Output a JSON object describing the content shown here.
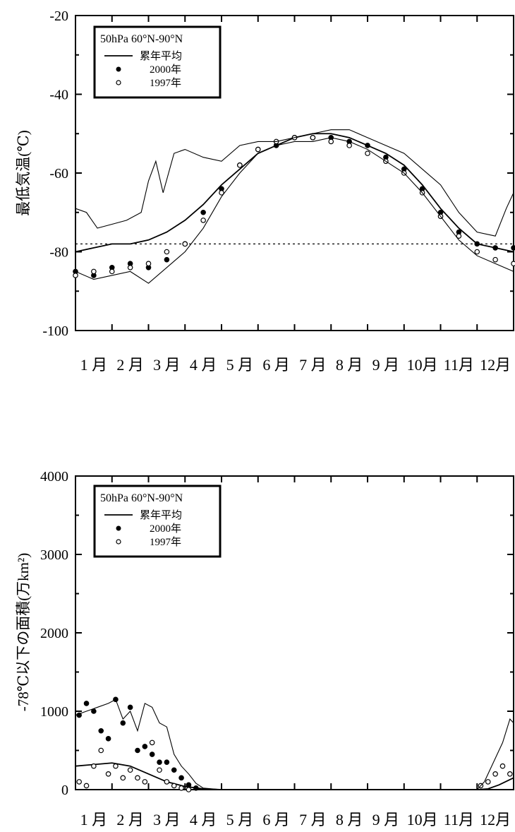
{
  "chart_data": [
    {
      "type": "line",
      "ylabel": "最低気温(℃)",
      "ylim": [
        -100,
        -20
      ],
      "yticks": [
        "-20",
        "-40",
        "-60",
        "-80",
        "-100"
      ],
      "xticks": [
        "1 月",
        "2 月",
        "3 月",
        "4 月",
        "5 月",
        "6 月",
        "7 月",
        "8 月",
        "9 月",
        "10月",
        "11月",
        "12月"
      ],
      "legend": {
        "title": "50hPa 60°N-90°N",
        "position": "top-left",
        "entries": [
          "累年平均",
          "2000年",
          "1997年"
        ]
      },
      "reference_line": {
        "y": -78,
        "style": "dashed"
      },
      "series": [
        {
          "name": "累年平均",
          "style": "line",
          "x": [
            0,
            0.5,
            1,
            1.5,
            2,
            2.5,
            3,
            3.5,
            4,
            4.5,
            5,
            5.5,
            6,
            6.5,
            7,
            7.5,
            8,
            8.5,
            9,
            9.5,
            10,
            10.5,
            11,
            11.5,
            12
          ],
          "y": [
            -80,
            -79,
            -78,
            -78,
            -77,
            -75,
            -72,
            -68,
            -63,
            -59,
            -55,
            -53,
            -51,
            -50,
            -50,
            -51,
            -53,
            -55,
            -58,
            -63,
            -69,
            -74,
            -78,
            -79,
            -80
          ]
        },
        {
          "name": "2000年",
          "style": "filled-dots",
          "x": [
            0,
            0.5,
            1,
            1.5,
            2,
            2.5,
            3,
            3.5,
            4,
            4.5,
            5,
            5.5,
            6,
            6.5,
            7,
            7.5,
            8,
            8.5,
            9,
            9.5,
            10,
            10.5,
            11,
            11.5,
            12
          ],
          "y": [
            -85,
            -86,
            -84,
            -83,
            -84,
            -82,
            -78,
            -70,
            -64,
            -58,
            -54,
            -53,
            -51,
            -51,
            -51,
            -52,
            -53,
            -56,
            -59,
            -64,
            -70,
            -75,
            -78,
            -79,
            -79
          ]
        },
        {
          "name": "1997年",
          "style": "open-dots",
          "x": [
            0,
            0.5,
            1,
            1.5,
            2,
            2.5,
            3,
            3.5,
            4,
            4.5,
            5,
            5.5,
            6,
            6.5,
            7,
            7.5,
            8,
            8.5,
            9,
            9.5,
            10,
            10.5,
            11,
            11.5,
            12
          ],
          "y": [
            -86,
            -85,
            -85,
            -84,
            -83,
            -80,
            -78,
            -72,
            -65,
            -58,
            -54,
            -52,
            -51,
            -51,
            -52,
            -53,
            -55,
            -57,
            -60,
            -65,
            -71,
            -76,
            -80,
            -82,
            -83
          ]
        },
        {
          "name": "",
          "style": "thin-line",
          "x": [
            0,
            0.3,
            0.6,
            1,
            1.4,
            1.8,
            2,
            2.2,
            2.4,
            2.7,
            3,
            3.5,
            4,
            4.5,
            5,
            5.5,
            6,
            6.5,
            7,
            7.5,
            8,
            8.5,
            9,
            9.5,
            10,
            10.5,
            11,
            11.5,
            11.8,
            12
          ],
          "y": [
            -69,
            -70,
            -74,
            -73,
            -72,
            -70,
            -62,
            -57,
            -65,
            -55,
            -54,
            -56,
            -57,
            -53,
            -52,
            -52,
            -51,
            -50,
            -49,
            -49,
            -51,
            -53,
            -55,
            -59,
            -63,
            -70,
            -75,
            -76,
            -69,
            -65
          ]
        },
        {
          "name": "",
          "style": "thin-line",
          "x": [
            0,
            0.5,
            1,
            1.5,
            2,
            2.5,
            3,
            3.5,
            4,
            4.5,
            5,
            5.5,
            6,
            6.5,
            7,
            7.5,
            8,
            8.5,
            9,
            9.5,
            10,
            10.5,
            11,
            11.5,
            12
          ],
          "y": [
            -85,
            -87,
            -86,
            -85,
            -88,
            -84,
            -80,
            -74,
            -66,
            -60,
            -55,
            -53,
            -52,
            -52,
            -51,
            -52,
            -54,
            -57,
            -60,
            -65,
            -71,
            -77,
            -81,
            -83,
            -85
          ]
        }
      ]
    },
    {
      "type": "line",
      "ylabel": "-78℃以下の面積(万km²)",
      "ylim": [
        0,
        4000
      ],
      "yticks": [
        "4000",
        "3000",
        "2000",
        "1000",
        "0"
      ],
      "xticks": [
        "1 月",
        "2 月",
        "3 月",
        "4 月",
        "5 月",
        "6 月",
        "7 月",
        "8 月",
        "9 月",
        "10月",
        "11月",
        "12月"
      ],
      "legend": {
        "title": "50hPa 60°N-90°N",
        "position": "top-left",
        "entries": [
          "累年平均",
          "2000年",
          "1997年"
        ]
      },
      "series": [
        {
          "name": "累年平均",
          "style": "line",
          "x": [
            0,
            0.5,
            1,
            1.5,
            2,
            2.5,
            3,
            3.5,
            4,
            5,
            6,
            7,
            8,
            9,
            10,
            10.5,
            11,
            11.3,
            11.6,
            12
          ],
          "y": [
            300,
            320,
            340,
            300,
            200,
            100,
            40,
            10,
            0,
            0,
            0,
            0,
            0,
            0,
            0,
            0,
            0,
            10,
            60,
            150
          ]
        },
        {
          "name": "2000年",
          "style": "filled-dots",
          "x": [
            0.1,
            0.3,
            0.5,
            0.7,
            0.9,
            1.1,
            1.3,
            1.5,
            1.7,
            1.9,
            2.1,
            2.3,
            2.5,
            2.7,
            2.9,
            3.1,
            3.3
          ],
          "y": [
            950,
            1100,
            1000,
            750,
            650,
            1150,
            850,
            1050,
            500,
            550,
            450,
            350,
            350,
            250,
            150,
            60,
            20
          ]
        },
        {
          "name": "1997年",
          "style": "open-dots",
          "x": [
            0.1,
            0.3,
            0.5,
            0.7,
            0.9,
            1.1,
            1.3,
            1.5,
            1.7,
            1.9,
            2.1,
            2.3,
            2.5,
            2.7,
            2.9,
            3.1,
            11.1,
            11.3,
            11.5,
            11.7,
            11.9
          ],
          "y": [
            100,
            50,
            300,
            500,
            200,
            300,
            150,
            250,
            150,
            100,
            600,
            250,
            100,
            50,
            20,
            0,
            50,
            100,
            200,
            300,
            200
          ]
        },
        {
          "name": "",
          "style": "thin-line",
          "x": [
            0,
            0.3,
            0.6,
            0.9,
            1.1,
            1.3,
            1.5,
            1.7,
            1.9,
            2.1,
            2.3,
            2.5,
            2.7,
            2.9,
            3.1,
            3.3,
            3.5,
            4,
            5,
            6,
            7,
            8,
            9,
            10,
            11,
            11.2,
            11.5,
            11.7,
            11.9,
            12
          ],
          "y": [
            950,
            1000,
            1050,
            1100,
            1150,
            900,
            1000,
            750,
            1100,
            1050,
            850,
            800,
            450,
            300,
            200,
            80,
            20,
            0,
            0,
            0,
            0,
            0,
            0,
            0,
            0,
            100,
            400,
            600,
            900,
            850
          ]
        }
      ]
    }
  ]
}
